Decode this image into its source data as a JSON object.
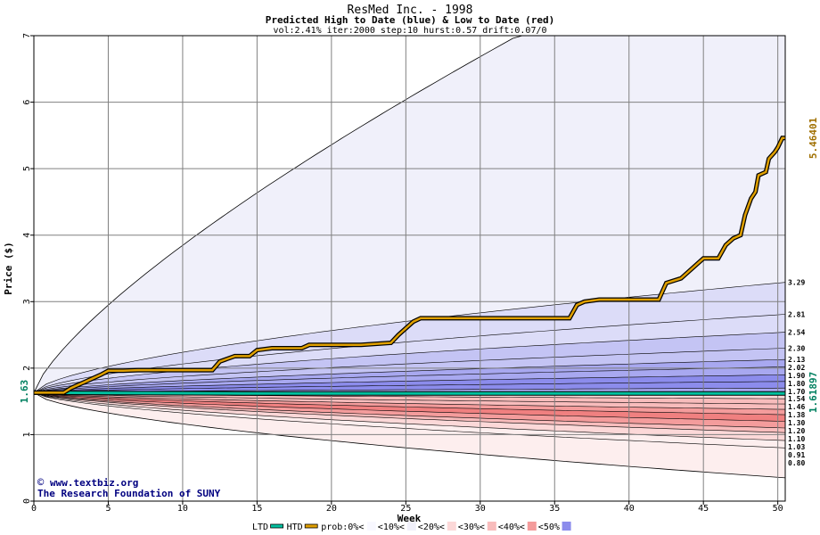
{
  "header": {
    "title": "ResMed Inc. - 1998",
    "subtitle": "Predicted High to Date (blue) &  Low to Date (red)",
    "params": "vol:2.41% iter:2000 step:10 hurst:0.57 drift:0.07/0"
  },
  "credits": {
    "site": "www.textbiz.org",
    "org": "The Research Foundation of SUNY"
  },
  "colors": {
    "outer_band": "#f0f0fa",
    "blue_band_1": "#dcdcf8",
    "blue_band_2": "#c4c4f4",
    "blue_band_3": "#a8a8f0",
    "blue_band_4": "#8c8cec",
    "red_band_outer": "#fdeeee",
    "red_band_1": "#fcd8d8",
    "red_band_2": "#f8bcbc",
    "red_band_3": "#f49c9c",
    "red_band_4": "#f08080",
    "htd_line": "#e0a000",
    "ltd_line": "#00c0a0",
    "grid": "#808080",
    "right_label_high": "#a07000",
    "right_label_low": "#008060",
    "start_label": "#008060"
  },
  "chart_data": {
    "type": "area",
    "title": "ResMed Inc. - 1998",
    "subtitle": "Predicted High to Date (blue) &  Low to Date (red)",
    "xlabel": "Week",
    "ylabel": "Price ($)",
    "xlim": [
      0,
      50.5
    ],
    "ylim": [
      0,
      7
    ],
    "x_ticks": [
      "0",
      "5",
      "10",
      "15",
      "20",
      "25",
      "30",
      "35",
      "40",
      "45",
      "50"
    ],
    "y_ticks": [
      "0",
      "1",
      "2",
      "3",
      "4",
      "5",
      "6",
      "7"
    ],
    "grid": true,
    "start_price_label": "1.63",
    "start_price": 1.63,
    "upper_envelope_end": 7.0,
    "lower_envelope_end": 0.35,
    "high_quantiles_end": [
      3.29,
      2.81,
      2.54,
      2.3,
      2.13,
      2.02,
      1.9,
      1.8,
      1.7
    ],
    "high_quantile_labels": [
      "3.29",
      "2.81",
      "2.54",
      "2.30",
      "2.13",
      "2.02",
      "1.90",
      "1.80",
      "1.70"
    ],
    "low_quantiles_end": [
      1.54,
      1.46,
      1.38,
      1.3,
      1.2,
      1.1,
      1.03,
      0.91,
      0.8
    ],
    "low_quantile_labels": [
      "1.54",
      "1.46",
      "1.38",
      "1.30",
      "1.20",
      "1.10",
      "1.03",
      "0.91",
      "0.80"
    ],
    "htd_series": {
      "name": "HTD",
      "end_value_label": "5.46401",
      "points": [
        [
          0,
          1.63
        ],
        [
          2,
          1.63
        ],
        [
          2.5,
          1.7
        ],
        [
          3.5,
          1.8
        ],
        [
          4.5,
          1.9
        ],
        [
          5,
          1.96
        ],
        [
          6,
          1.96
        ],
        [
          7,
          1.97
        ],
        [
          9,
          1.97
        ],
        [
          12,
          1.97
        ],
        [
          12.5,
          2.1
        ],
        [
          13.5,
          2.18
        ],
        [
          14.5,
          2.18
        ],
        [
          15,
          2.27
        ],
        [
          16,
          2.3
        ],
        [
          18,
          2.3
        ],
        [
          18.5,
          2.35
        ],
        [
          22,
          2.35
        ],
        [
          24,
          2.38
        ],
        [
          24.5,
          2.5
        ],
        [
          25.5,
          2.7
        ],
        [
          26,
          2.75
        ],
        [
          36,
          2.75
        ],
        [
          36.5,
          2.95
        ],
        [
          37,
          3.0
        ],
        [
          38,
          3.03
        ],
        [
          42,
          3.03
        ],
        [
          42.5,
          3.28
        ],
        [
          43.5,
          3.35
        ],
        [
          45,
          3.65
        ],
        [
          46,
          3.65
        ],
        [
          46.5,
          3.85
        ],
        [
          47,
          3.95
        ],
        [
          47.5,
          4.0
        ],
        [
          47.8,
          4.3
        ],
        [
          48.2,
          4.55
        ],
        [
          48.5,
          4.65
        ],
        [
          48.7,
          4.9
        ],
        [
          49.2,
          4.95
        ],
        [
          49.4,
          5.15
        ],
        [
          49.8,
          5.25
        ],
        [
          50,
          5.32
        ],
        [
          50.3,
          5.46
        ],
        [
          50.5,
          5.46
        ]
      ]
    },
    "ltd_series": {
      "name": "LTD",
      "end_value_label": "1.61897",
      "points": [
        [
          0,
          1.63
        ],
        [
          14,
          1.62
        ],
        [
          50.5,
          1.619
        ]
      ]
    }
  },
  "legend": {
    "items": [
      {
        "label": "LTD",
        "swatch": "#00c0a0",
        "type": "line"
      },
      {
        "label": "HTD",
        "swatch": "#e0a000",
        "type": "line"
      },
      {
        "label": "prob:0%<",
        "swatch": "#f8f8ff",
        "type": "box"
      },
      {
        "label": "<10%<",
        "swatch": "#f0f0fa",
        "type": "box"
      },
      {
        "label": "<20%<",
        "swatch": "#fcd8d8",
        "type": "box"
      },
      {
        "label": "<30%<",
        "swatch": "#f8bcbc",
        "type": "box"
      },
      {
        "label": "<40%<",
        "swatch": "#f49c9c",
        "type": "box"
      },
      {
        "label": "<50%",
        "swatch": "#8c8cec",
        "type": "box"
      }
    ]
  }
}
